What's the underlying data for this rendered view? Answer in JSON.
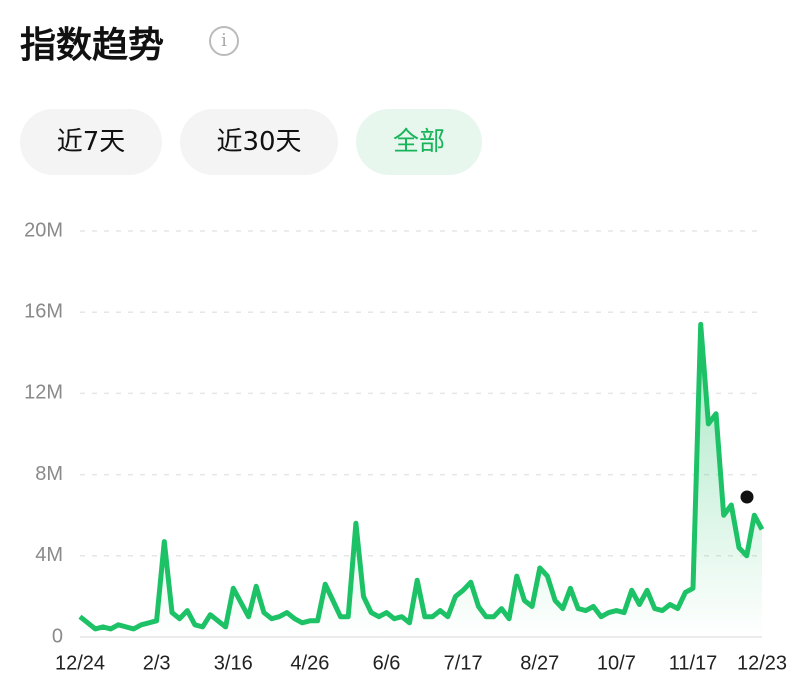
{
  "header": {
    "title": "指数趋势"
  },
  "tabs": [
    "近7天",
    "近30天",
    "全部"
  ],
  "chart_data": {
    "type": "line",
    "categories": [
      "12/24",
      null,
      null,
      null,
      null,
      null,
      null,
      null,
      null,
      null,
      "2/3",
      null,
      null,
      null,
      null,
      null,
      null,
      null,
      null,
      null,
      "3/16",
      null,
      null,
      null,
      null,
      null,
      null,
      null,
      null,
      null,
      "4/26",
      null,
      null,
      null,
      null,
      null,
      null,
      null,
      null,
      null,
      "6/6",
      null,
      null,
      null,
      null,
      null,
      null,
      null,
      null,
      null,
      "7/17",
      null,
      null,
      null,
      null,
      null,
      null,
      null,
      null,
      null,
      "8/27",
      null,
      null,
      null,
      null,
      null,
      null,
      null,
      null,
      null,
      "10/7",
      null,
      null,
      null,
      null,
      null,
      null,
      null,
      null,
      null,
      "11/17",
      null,
      null,
      null,
      null,
      null,
      null,
      null,
      null,
      "12/23"
    ],
    "series": [
      {
        "name": null,
        "color": "#1dc267",
        "values": [
          1000000,
          700000,
          400000,
          500000,
          400000,
          600000,
          500000,
          400000,
          600000,
          700000,
          800000,
          4700000,
          1200000,
          900000,
          1300000,
          600000,
          500000,
          1100000,
          800000,
          500000,
          2400000,
          1700000,
          1000000,
          2500000,
          1200000,
          900000,
          1000000,
          1200000,
          900000,
          700000,
          800000,
          800000,
          2600000,
          1800000,
          1000000,
          1000000,
          5600000,
          2000000,
          1200000,
          1000000,
          1200000,
          900000,
          1000000,
          700000,
          2800000,
          1000000,
          1000000,
          1300000,
          1000000,
          2000000,
          2300000,
          2700000,
          1500000,
          1000000,
          1000000,
          1400000,
          900000,
          3000000,
          1800000,
          1500000,
          3400000,
          3000000,
          1800000,
          1400000,
          2400000,
          1400000,
          1300000,
          1500000,
          1000000,
          1200000,
          1300000,
          1200000,
          2300000,
          1600000,
          2300000,
          1400000,
          1300000,
          1600000,
          1400000,
          2200000,
          2400000,
          15400000,
          10500000,
          11000000,
          6000000,
          6500000,
          4400000,
          4000000,
          6000000,
          5300000
        ]
      }
    ],
    "ylim": [
      0,
      20000000
    ],
    "yticks": [
      0,
      {
        "value": 4000000,
        "label": "4M"
      },
      {
        "value": 8000000,
        "label": "8M"
      },
      {
        "value": 12000000,
        "label": "12M"
      },
      {
        "value": 16000000,
        "label": "16M"
      },
      {
        "value": 20000000,
        "label": "20M"
      }
    ],
    "grid": true
  }
}
